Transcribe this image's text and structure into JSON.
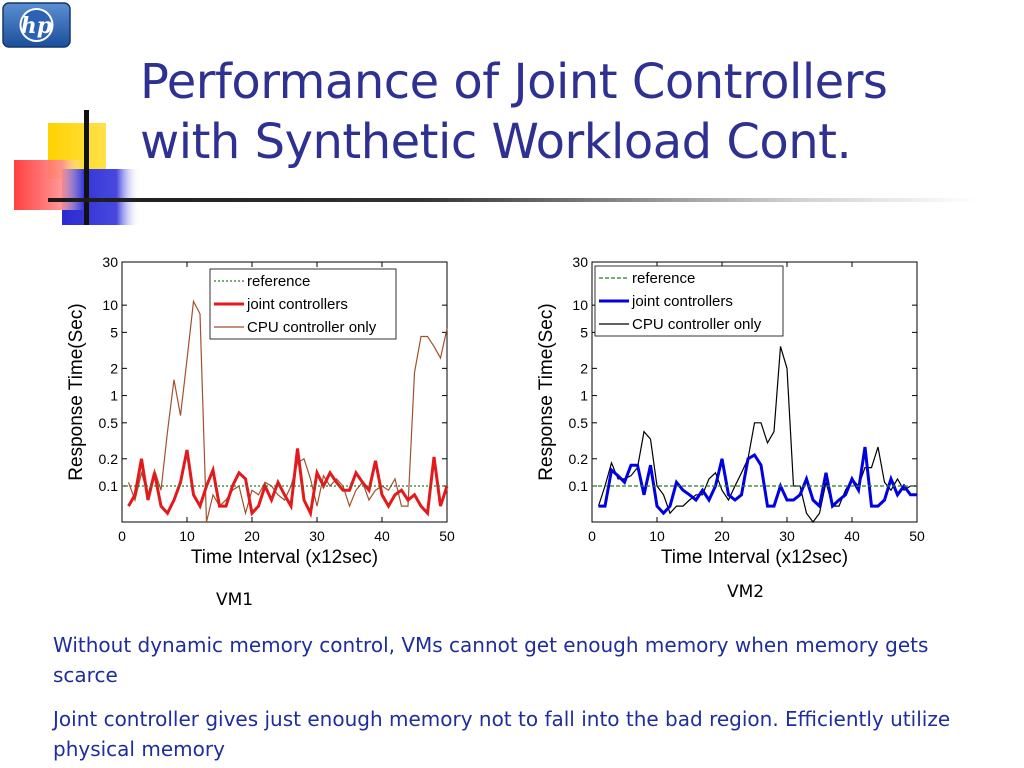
{
  "slide": {
    "title_line1": "Performance of Joint Controllers",
    "title_line2": "with Synthetic Workload Cont.",
    "logo_text": "hp",
    "paragraphs": [
      "Without dynamic memory control, VMs cannot get enough memory when memory gets scarce",
      "Joint controller gives just enough memory not to fall into the bad region. Efficiently utilize physical memory"
    ],
    "colors": {
      "title": "#2e3192",
      "body_text": "#1f2e9c"
    }
  },
  "chart_data": [
    {
      "type": "line",
      "caption": "VM1",
      "xlabel": "Time Interval (x12sec)",
      "ylabel": "Response Time(Sec)",
      "xlim": [
        0,
        50
      ],
      "ylim": [
        0.04,
        30
      ],
      "yscale": "log",
      "xticks": [
        "0",
        "10",
        "20",
        "30",
        "40",
        "50"
      ],
      "yticks": [
        "0.1",
        "0.2",
        "0.5",
        "1",
        "2",
        "5",
        "10",
        "30"
      ],
      "legend_position": "top-center",
      "series": [
        {
          "name": "reference",
          "color": "#2b7a2b",
          "style": "dotted",
          "x": [
            0,
            50
          ],
          "y": [
            0.1,
            0.1
          ]
        },
        {
          "name": "joint controllers",
          "color": "#e31a1c",
          "style": "solid-thick",
          "x": [
            1,
            2,
            3,
            4,
            5,
            6,
            7,
            8,
            9,
            10,
            11,
            12,
            13,
            14,
            15,
            16,
            17,
            18,
            19,
            20,
            21,
            22,
            23,
            24,
            25,
            26,
            27,
            28,
            29,
            30,
            31,
            32,
            33,
            34,
            35,
            36,
            37,
            38,
            39,
            40,
            41,
            42,
            43,
            44,
            45,
            46,
            47,
            48,
            49,
            50
          ],
          "y": [
            0.06,
            0.08,
            0.2,
            0.07,
            0.14,
            0.06,
            0.05,
            0.07,
            0.11,
            0.25,
            0.08,
            0.06,
            0.1,
            0.15,
            0.06,
            0.06,
            0.1,
            0.14,
            0.12,
            0.05,
            0.06,
            0.1,
            0.07,
            0.11,
            0.08,
            0.06,
            0.26,
            0.07,
            0.05,
            0.14,
            0.1,
            0.14,
            0.11,
            0.09,
            0.09,
            0.14,
            0.11,
            0.09,
            0.19,
            0.08,
            0.06,
            0.08,
            0.09,
            0.07,
            0.08,
            0.06,
            0.05,
            0.21,
            0.06,
            0.1
          ]
        },
        {
          "name": "CPU controller only",
          "color": "#a0522d",
          "style": "solid",
          "x": [
            1,
            2,
            3,
            4,
            5,
            6,
            7,
            8,
            9,
            10,
            11,
            12,
            13,
            14,
            15,
            16,
            17,
            18,
            19,
            20,
            21,
            22,
            23,
            24,
            25,
            26,
            27,
            28,
            29,
            30,
            31,
            32,
            33,
            34,
            35,
            36,
            37,
            38,
            39,
            40,
            41,
            42,
            43,
            44,
            45,
            46,
            47,
            48,
            49,
            50
          ],
          "y": [
            0.11,
            0.07,
            0.14,
            0.08,
            0.15,
            0.09,
            0.4,
            1.5,
            0.6,
            2.5,
            11,
            8,
            0.04,
            0.08,
            0.06,
            0.07,
            0.09,
            0.1,
            0.05,
            0.09,
            0.08,
            0.11,
            0.1,
            0.08,
            0.07,
            0.1,
            0.18,
            0.2,
            0.12,
            0.06,
            0.13,
            0.1,
            0.12,
            0.1,
            0.06,
            0.09,
            0.11,
            0.07,
            0.09,
            0.1,
            0.09,
            0.12,
            0.06,
            0.06,
            1.8,
            4.5,
            4.5,
            3.5,
            2.6,
            5.5
          ]
        }
      ]
    },
    {
      "type": "line",
      "caption": "VM2",
      "xlabel": "Time Interval (x12sec)",
      "ylabel": "Response Time(Sec)",
      "xlim": [
        0,
        50
      ],
      "ylim": [
        0.04,
        30
      ],
      "yscale": "log",
      "xticks": [
        "0",
        "10",
        "20",
        "30",
        "40",
        "50"
      ],
      "yticks": [
        "0.1",
        "0.2",
        "0.5",
        "1",
        "2",
        "5",
        "10",
        "30"
      ],
      "legend_position": "top-left",
      "series": [
        {
          "name": "reference",
          "color": "#2b7a2b",
          "style": "dashed",
          "x": [
            0,
            50
          ],
          "y": [
            0.1,
            0.1
          ]
        },
        {
          "name": "joint controllers",
          "color": "#0000e0",
          "style": "solid-thick",
          "x": [
            1,
            2,
            3,
            4,
            5,
            6,
            7,
            8,
            9,
            10,
            11,
            12,
            13,
            14,
            15,
            16,
            17,
            18,
            19,
            20,
            21,
            22,
            23,
            24,
            25,
            26,
            27,
            28,
            29,
            30,
            31,
            32,
            33,
            34,
            35,
            36,
            37,
            38,
            39,
            40,
            41,
            42,
            43,
            44,
            45,
            46,
            47,
            48,
            49,
            50
          ],
          "y": [
            0.06,
            0.06,
            0.15,
            0.13,
            0.11,
            0.17,
            0.17,
            0.08,
            0.17,
            0.06,
            0.05,
            0.06,
            0.11,
            0.09,
            0.08,
            0.07,
            0.09,
            0.07,
            0.1,
            0.2,
            0.08,
            0.07,
            0.08,
            0.2,
            0.22,
            0.17,
            0.06,
            0.06,
            0.1,
            0.07,
            0.07,
            0.08,
            0.12,
            0.07,
            0.06,
            0.14,
            0.06,
            0.07,
            0.08,
            0.12,
            0.09,
            0.27,
            0.06,
            0.06,
            0.07,
            0.12,
            0.08,
            0.1,
            0.08,
            0.08
          ]
        },
        {
          "name": "CPU controller only",
          "color": "#000000",
          "style": "solid",
          "x": [
            1,
            2,
            3,
            4,
            5,
            6,
            7,
            8,
            9,
            10,
            11,
            12,
            13,
            14,
            15,
            16,
            17,
            18,
            19,
            20,
            21,
            22,
            23,
            24,
            25,
            26,
            27,
            28,
            29,
            30,
            31,
            32,
            33,
            34,
            35,
            36,
            37,
            38,
            39,
            40,
            41,
            42,
            43,
            44,
            45,
            46,
            47,
            48,
            49,
            50
          ],
          "y": [
            0.06,
            0.1,
            0.18,
            0.12,
            0.12,
            0.13,
            0.16,
            0.4,
            0.33,
            0.1,
            0.08,
            0.05,
            0.06,
            0.06,
            0.07,
            0.08,
            0.08,
            0.12,
            0.14,
            0.09,
            0.07,
            0.1,
            0.14,
            0.2,
            0.5,
            0.5,
            0.3,
            0.4,
            3.5,
            2,
            0.1,
            0.1,
            0.05,
            0.04,
            0.05,
            0.11,
            0.06,
            0.06,
            0.09,
            0.12,
            0.1,
            0.16,
            0.16,
            0.27,
            0.11,
            0.09,
            0.12,
            0.09,
            0.1,
            0.1
          ]
        }
      ]
    }
  ]
}
